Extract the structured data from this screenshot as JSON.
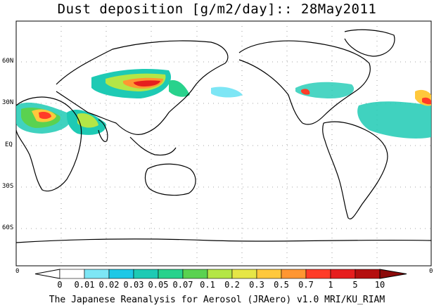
{
  "title": "Dust deposition [g/m2/day]:: 28May2011",
  "credit": "The Japanese Reanalysis for Aerosol (JRAero) v1.0 MRI/KU_RIAM",
  "lat_labels": [
    "60N",
    "30N",
    "EQ",
    "30S",
    "60S"
  ],
  "colorbar": {
    "labels": [
      "0",
      "0.01",
      "0.02",
      "0.03",
      "0.05",
      "0.07",
      "0.1",
      "0.2",
      "0.3",
      "0.5",
      "0.7",
      "1",
      "5",
      "10"
    ],
    "colors": [
      "#ffffff",
      "#ffffff",
      "#7de6f5",
      "#1ec8e6",
      "#1ecab4",
      "#28d28c",
      "#5ad250",
      "#b4e646",
      "#e6e646",
      "#ffc83c",
      "#ff9632",
      "#ff3c28",
      "#e61e1e",
      "#b40f0f",
      "#8c0a0a",
      "#8c0a0a"
    ],
    "left_end": "0",
    "right_end": "0"
  }
}
